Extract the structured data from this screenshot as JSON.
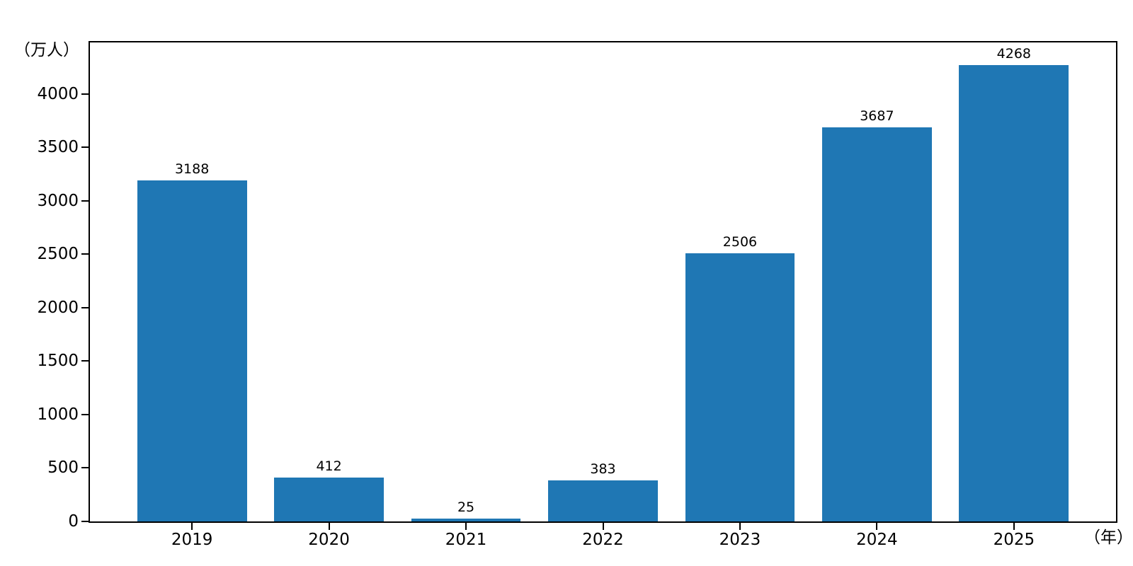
{
  "chart_data": {
    "type": "bar",
    "title": "",
    "categories": [
      "2019",
      "2020",
      "2021",
      "2022",
      "2023",
      "2024",
      "2025"
    ],
    "values": [
      3188,
      412,
      25,
      383,
      2506,
      3687,
      4268
    ],
    "xlabel": "（年）",
    "ylabel": "（万人）",
    "y_ticks": [
      0,
      500,
      1000,
      1500,
      2000,
      2500,
      3000,
      3500,
      4000
    ],
    "ylim": [
      0,
      4480
    ],
    "bar_color": "#1f77b4",
    "axis_color": "#000000",
    "grid": false,
    "legend": "none",
    "value_labels_shown": true
  }
}
